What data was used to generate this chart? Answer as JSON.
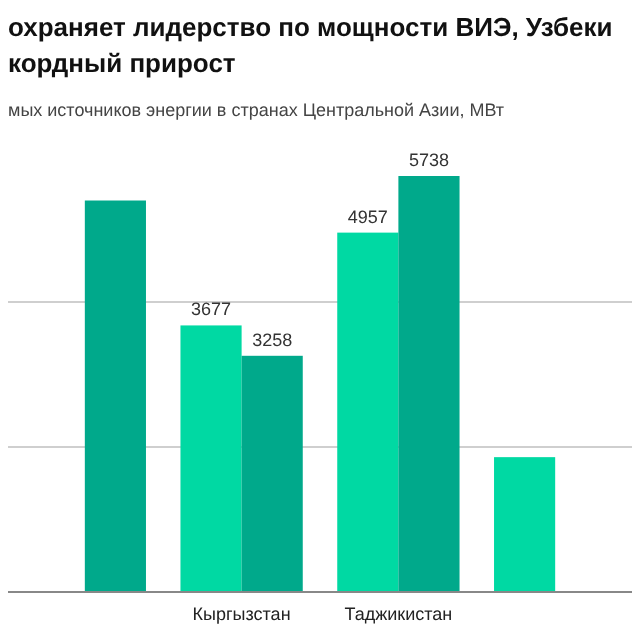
{
  "chart_data": {
    "type": "bar",
    "title": "охраняет лидерство по мощности ВИЭ, Узбеки\nкордный прирост",
    "subtitle": "мых источников энергии в странах Центральной Азии, МВт",
    "categories": [
      null,
      "Кыргызстан",
      "Таджикистан",
      null
    ],
    "series": [
      {
        "color": "#00d9a3",
        "values": [
          null,
          3677,
          4957,
          1860
        ],
        "value_labels": [
          null,
          "3677",
          "4957",
          null
        ]
      },
      {
        "color": "#00a98b",
        "values": [
          5400,
          3258,
          5738,
          null
        ],
        "value_labels": [
          null,
          "3258",
          "5738",
          null
        ]
      }
    ],
    "ref_lines": [
      {
        "axis": "y",
        "value": 2000,
        "color": "#cfcfcf"
      },
      {
        "axis": "y",
        "value": 4000,
        "color": "#cfcfcf"
      }
    ],
    "tick_labels": "x"
  }
}
